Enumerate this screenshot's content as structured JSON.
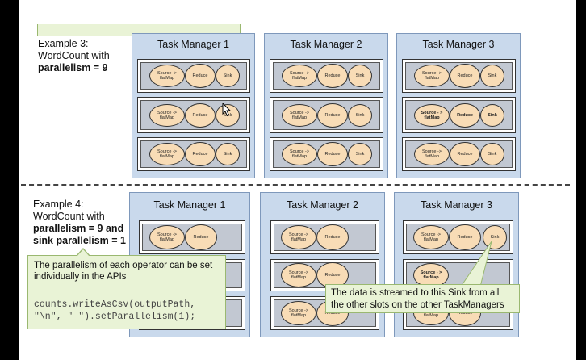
{
  "example3": {
    "line1": "Example 3:",
    "line2": "WordCount with",
    "line3": "parallelism = 9",
    "task_managers": [
      {
        "title": "Task Manager 1"
      },
      {
        "title": "Task Manager 2"
      },
      {
        "title": "Task Manager 3"
      }
    ]
  },
  "example4": {
    "line1": "Example 4:",
    "line2": "WordCount with",
    "line3": "parallelism = 9 and",
    "line4": "sink parallelism = 1",
    "task_managers": [
      {
        "title": "Task Manager 1"
      },
      {
        "title": "Task Manager 2"
      },
      {
        "title": "Task Manager 3"
      }
    ]
  },
  "operators": {
    "source": "Source -> flatMap",
    "source_bold": "Source - > flatMap",
    "reduce": "Reduce",
    "sink": "Sink"
  },
  "callout_api": {
    "text": "The parallelism of each operator can be set individually in the APIs",
    "code_line1": "counts.writeAsCsv(outputPath,",
    "code_line2": "\"\\n\", \" \").setParallelism(1);"
  },
  "callout_sink": {
    "line1": "The data is streamed to this Sink from all",
    "line2": "the other slots on the other TaskManagers"
  },
  "colors": {
    "callout_bg": "#e9f3d6",
    "task_manager_bg": "#c9d9ec",
    "operator_bg": "#f8dcb6",
    "slot_bg": "#c2c8d2"
  }
}
